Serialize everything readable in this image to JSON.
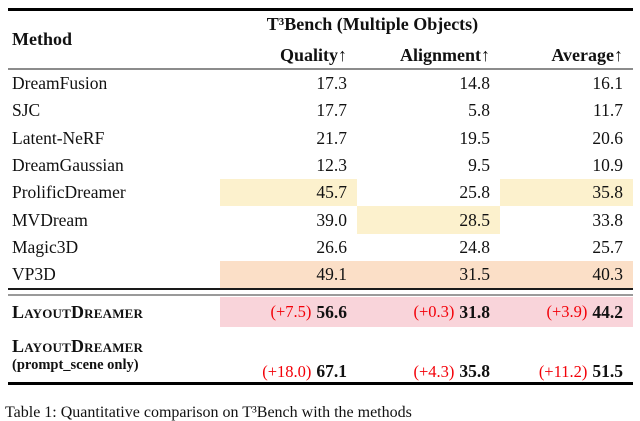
{
  "colors": {
    "highlight_yellow": "#fcf1cd",
    "highlight_orange": "#fbdfc7",
    "highlight_pink": "#f9d4da",
    "delta_red": "#f30008"
  },
  "header": {
    "method_label": "Method",
    "group_title": "T³Bench (Multiple Objects)",
    "col_quality": "Quality↑",
    "col_alignment": "Alignment↑",
    "col_average": "Average↑"
  },
  "chart_data": {
    "type": "table",
    "title": "T³Bench (Multiple Objects)",
    "columns": [
      "Method",
      "Quality",
      "Alignment",
      "Average"
    ],
    "rows": [
      [
        "DreamFusion",
        17.3,
        14.8,
        16.1
      ],
      [
        "SJC",
        17.7,
        5.8,
        11.7
      ],
      [
        "Latent-NeRF",
        21.7,
        19.5,
        20.6
      ],
      [
        "DreamGaussian",
        12.3,
        9.5,
        10.9
      ],
      [
        "ProlificDreamer",
        45.7,
        25.8,
        35.8
      ],
      [
        "MVDream",
        39.0,
        28.5,
        33.8
      ],
      [
        "Magic3D",
        26.6,
        24.8,
        25.7
      ],
      [
        "VP3D",
        49.1,
        31.5,
        40.3
      ],
      [
        "LayoutDreamer",
        56.6,
        31.8,
        44.2
      ],
      [
        "LayoutDreamer (prompt_scene only)",
        67.1,
        35.8,
        51.5
      ]
    ]
  },
  "rows": [
    {
      "name": "DreamFusion",
      "quality": "17.3",
      "alignment": "14.8",
      "average": "16.1"
    },
    {
      "name": "SJC",
      "quality": "17.7",
      "alignment": "5.8",
      "average": "11.7"
    },
    {
      "name": "Latent-NeRF",
      "quality": "21.7",
      "alignment": "19.5",
      "average": "20.6"
    },
    {
      "name": "DreamGaussian",
      "quality": "12.3",
      "alignment": "9.5",
      "average": "10.9"
    },
    {
      "name": "ProlificDreamer",
      "quality": "45.7",
      "alignment": "25.8",
      "average": "35.8"
    },
    {
      "name": "MVDream",
      "quality": "39.0",
      "alignment": "28.5",
      "average": "33.8"
    },
    {
      "name": "Magic3D",
      "quality": "26.6",
      "alignment": "24.8",
      "average": "25.7"
    },
    {
      "name": "VP3D",
      "quality": "49.1",
      "alignment": "31.5",
      "average": "40.3"
    }
  ],
  "ld_rows": [
    {
      "name": "LayoutDreamer",
      "quality_delta": "(+7.5)",
      "quality": "56.6",
      "alignment_delta": "(+0.3)",
      "alignment": "31.8",
      "average_delta": "(+3.9)",
      "average": "44.2"
    },
    {
      "name": "LayoutDreamer",
      "subtitle": "(prompt_scene only)",
      "quality_delta": "(+18.0)",
      "quality": "67.1",
      "alignment_delta": "(+4.3)",
      "alignment": "35.8",
      "average_delta": "(+11.2)",
      "average": "51.5"
    }
  ],
  "caption": {
    "text": "Table 1: Quantitative comparison on T³Bench with the methods"
  }
}
